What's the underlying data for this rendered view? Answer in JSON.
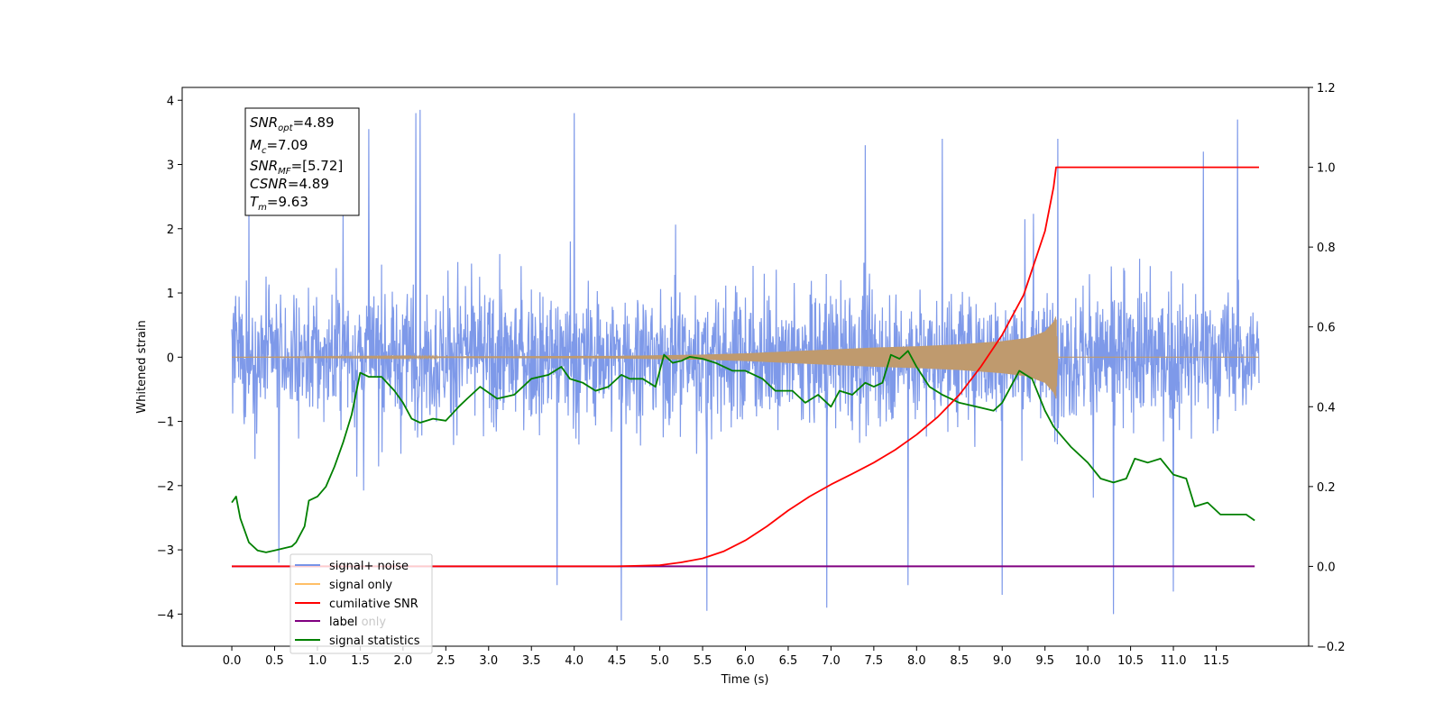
{
  "chart_data": {
    "type": "line",
    "xlabel": "Time (s)",
    "ylabel_left": "Whitened strain",
    "ylabel_right": "",
    "xlim": [
      -0.58,
      12.58
    ],
    "ylim_left": [
      -4.5,
      4.2
    ],
    "ylim_right": [
      -0.2,
      1.2
    ],
    "x_ticks": [
      "0.0",
      "0.5",
      "1.0",
      "1.5",
      "2.0",
      "2.5",
      "3.0",
      "3.5",
      "4.0",
      "4.5",
      "5.0",
      "5.5",
      "6.0",
      "6.5",
      "7.0",
      "7.5",
      "8.0",
      "8.5",
      "9.0",
      "9.5",
      "10.0",
      "10.5",
      "11.0",
      "11.5"
    ],
    "y_ticks_left": [
      "4",
      "3",
      "2",
      "1",
      "0",
      "−1",
      "−2",
      "−3",
      "−4"
    ],
    "y_ticks_right": [
      "1.2",
      "1.0",
      "0.8",
      "0.6",
      "0.4",
      "0.2",
      "0.0",
      "−0.2"
    ],
    "grid": false,
    "legend_position": "lower-left",
    "series": [
      {
        "name": "signal+ noise",
        "axis": "left",
        "color": "#7794e8",
        "band_center": 0.0,
        "band_halfwidth_typical": 1.1,
        "duration": 12.0,
        "peaks": [
          {
            "x": 0.2,
            "y": 2.5
          },
          {
            "x": 0.55,
            "y": -3.2
          },
          {
            "x": 1.3,
            "y": 2.2
          },
          {
            "x": 1.6,
            "y": 3.55
          },
          {
            "x": 2.15,
            "y": 3.8
          },
          {
            "x": 2.2,
            "y": 3.85
          },
          {
            "x": 3.8,
            "y": -3.55
          },
          {
            "x": 4.0,
            "y": 3.8
          },
          {
            "x": 4.55,
            "y": -4.1
          },
          {
            "x": 5.55,
            "y": -3.95
          },
          {
            "x": 6.95,
            "y": -3.9
          },
          {
            "x": 7.4,
            "y": 3.3
          },
          {
            "x": 7.9,
            "y": -3.55
          },
          {
            "x": 8.3,
            "y": 3.4
          },
          {
            "x": 9.0,
            "y": -3.7
          },
          {
            "x": 9.65,
            "y": 3.4
          },
          {
            "x": 10.3,
            "y": -4.0
          },
          {
            "x": 11.0,
            "y": -3.65
          },
          {
            "x": 11.75,
            "y": 3.7
          },
          {
            "x": 11.35,
            "y": 3.2
          }
        ]
      },
      {
        "name": "signal only",
        "axis": "left",
        "color": "#bf9a6e",
        "envelope": [
          [
            0.0,
            0.0
          ],
          [
            4.5,
            0.02
          ],
          [
            5.5,
            0.04
          ],
          [
            6.0,
            0.06
          ],
          [
            6.5,
            0.09
          ],
          [
            7.0,
            0.12
          ],
          [
            7.5,
            0.15
          ],
          [
            8.0,
            0.17
          ],
          [
            8.5,
            0.2
          ],
          [
            9.0,
            0.25
          ],
          [
            9.3,
            0.3
          ],
          [
            9.5,
            0.4
          ],
          [
            9.6,
            0.55
          ],
          [
            9.63,
            0.65
          ],
          [
            9.65,
            0.0
          ],
          [
            12.0,
            0.0
          ]
        ]
      },
      {
        "name": "cumilative SNR",
        "axis": "right",
        "color": "#ff0000",
        "x": [
          0.0,
          4.5,
          5.0,
          5.25,
          5.5,
          5.75,
          6.0,
          6.25,
          6.5,
          6.75,
          7.0,
          7.25,
          7.5,
          7.75,
          8.0,
          8.25,
          8.5,
          8.75,
          9.0,
          9.25,
          9.5,
          9.6,
          9.63,
          12.0
        ],
        "values": [
          0.0,
          0.0,
          0.003,
          0.01,
          0.02,
          0.038,
          0.065,
          0.1,
          0.14,
          0.175,
          0.205,
          0.232,
          0.26,
          0.292,
          0.33,
          0.375,
          0.43,
          0.5,
          0.58,
          0.68,
          0.84,
          0.95,
          1.0,
          1.0
        ]
      },
      {
        "name": "label",
        "axis": "right",
        "color": "#800080",
        "x": [
          0.0,
          11.95
        ],
        "values": [
          0.0,
          0.0
        ]
      },
      {
        "name": "signal statistics",
        "axis": "right",
        "color": "#008000",
        "x": [
          0.0,
          0.05,
          0.1,
          0.2,
          0.3,
          0.4,
          0.5,
          0.6,
          0.7,
          0.75,
          0.85,
          0.9,
          1.0,
          1.1,
          1.2,
          1.3,
          1.4,
          1.5,
          1.6,
          1.75,
          1.9,
          2.0,
          2.1,
          2.2,
          2.35,
          2.5,
          2.65,
          2.75,
          2.9,
          3.1,
          3.3,
          3.5,
          3.7,
          3.85,
          3.95,
          4.1,
          4.25,
          4.4,
          4.55,
          4.65,
          4.8,
          4.95,
          5.05,
          5.15,
          5.25,
          5.35,
          5.5,
          5.65,
          5.85,
          6.0,
          6.2,
          6.35,
          6.55,
          6.7,
          6.85,
          7.0,
          7.1,
          7.25,
          7.4,
          7.5,
          7.6,
          7.7,
          7.8,
          7.9,
          8.0,
          8.15,
          8.3,
          8.5,
          8.7,
          8.9,
          9.0,
          9.1,
          9.2,
          9.35,
          9.5,
          9.6,
          9.8,
          10.0,
          10.15,
          10.3,
          10.45,
          10.55,
          10.7,
          10.85,
          11.0,
          11.15,
          11.25,
          11.4,
          11.55,
          11.7,
          11.85,
          11.95
        ],
        "values": [
          0.16,
          0.175,
          0.12,
          0.06,
          0.04,
          0.035,
          0.04,
          0.045,
          0.05,
          0.06,
          0.1,
          0.165,
          0.175,
          0.2,
          0.25,
          0.31,
          0.38,
          0.485,
          0.475,
          0.475,
          0.44,
          0.41,
          0.37,
          0.36,
          0.37,
          0.365,
          0.4,
          0.42,
          0.45,
          0.42,
          0.43,
          0.47,
          0.48,
          0.5,
          0.47,
          0.46,
          0.44,
          0.45,
          0.48,
          0.47,
          0.47,
          0.45,
          0.53,
          0.51,
          0.515,
          0.525,
          0.52,
          0.51,
          0.49,
          0.49,
          0.47,
          0.44,
          0.44,
          0.41,
          0.43,
          0.4,
          0.44,
          0.43,
          0.46,
          0.45,
          0.46,
          0.53,
          0.52,
          0.54,
          0.5,
          0.45,
          0.43,
          0.41,
          0.4,
          0.39,
          0.41,
          0.45,
          0.49,
          0.47,
          0.39,
          0.35,
          0.3,
          0.26,
          0.22,
          0.21,
          0.22,
          0.27,
          0.26,
          0.27,
          0.23,
          0.22,
          0.15,
          0.16,
          0.13,
          0.13,
          0.13,
          0.115
        ]
      }
    ],
    "legend": [
      "signal+ noise",
      "signal only",
      "cumilative SNR",
      "label",
      "signal statistics"
    ],
    "legend_hidden_text": "label only",
    "annotation": {
      "snr_opt": {
        "main": "SNR",
        "sub": "opt",
        "value": "=4.89"
      },
      "mc": {
        "main": "M",
        "sub": "c",
        "value": "=7.09"
      },
      "snr_mf": {
        "main": "SNR",
        "sub": "MF",
        "value": "=[5.72]"
      },
      "csnr": {
        "main": "CSNR",
        "value": "=4.89"
      },
      "tm": {
        "main": "T",
        "sub": "m",
        "value": "=9.63"
      }
    }
  }
}
